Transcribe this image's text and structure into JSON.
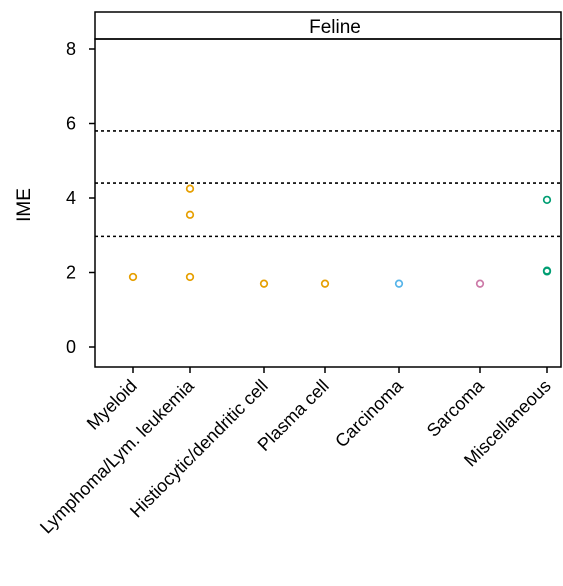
{
  "chart_data": {
    "type": "scatter",
    "title": "",
    "panel_label": "Feline",
    "xlabel": "",
    "ylabel": "IME",
    "ylim": [
      -0.6,
      9.0
    ],
    "y_ticks": [
      0,
      2,
      4,
      6,
      8
    ],
    "grid": false,
    "categories": [
      "Myeloid",
      "Lymphoma/Lym. leukemia",
      "Histiocytic/dendritic cell",
      "Plasma cell",
      "Carcinoma",
      "Sarcoma",
      "Miscellaneous"
    ],
    "category_colors": {
      "Myeloid": "#E69F00",
      "Lymphoma/Lym. leukemia": "#E69F00",
      "Histiocytic/dendritic cell": "#E69F00",
      "Plasma cell": "#E69F00",
      "Carcinoma": "#56B4E9",
      "Sarcoma": "#CC79A7",
      "Miscellaneous": "#009E73"
    },
    "points": [
      {
        "category": "Myeloid",
        "y": 1.88
      },
      {
        "category": "Lymphoma/Lym. leukemia",
        "y": 4.25
      },
      {
        "category": "Lymphoma/Lym. leukemia",
        "y": 3.55
      },
      {
        "category": "Lymphoma/Lym. leukemia",
        "y": 1.88
      },
      {
        "category": "Histiocytic/dendritic cell",
        "y": 1.7
      },
      {
        "category": "Plasma cell",
        "y": 1.7
      },
      {
        "category": "Carcinoma",
        "y": 1.7
      },
      {
        "category": "Sarcoma",
        "y": 1.7
      },
      {
        "category": "Miscellaneous",
        "y": 3.95
      },
      {
        "category": "Miscellaneous",
        "y": 2.05
      },
      {
        "category": "Miscellaneous",
        "y": 2.03
      }
    ],
    "reference_lines": [
      5.8,
      4.4,
      2.97
    ],
    "reference_line_style": "dotted"
  }
}
